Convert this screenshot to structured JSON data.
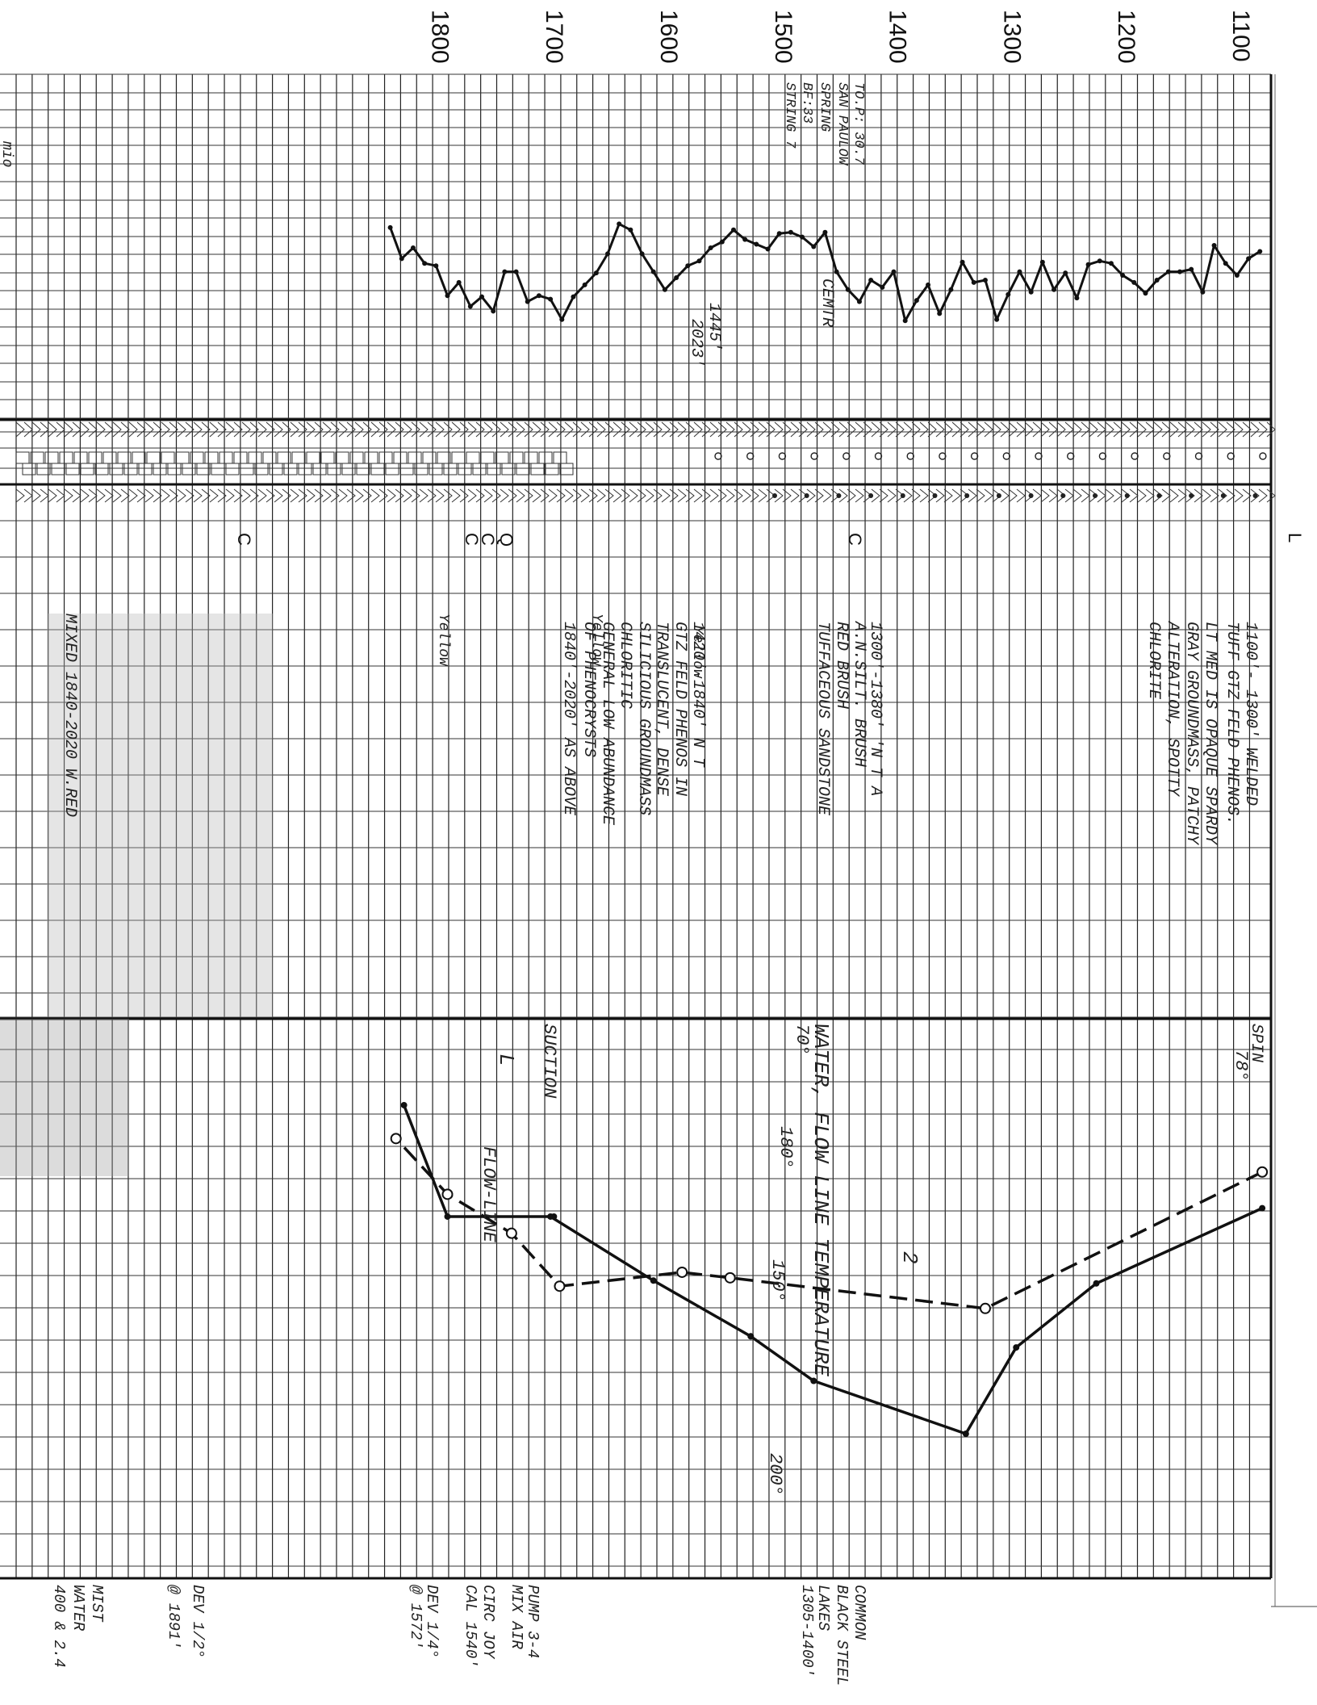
{
  "log": {
    "depth_labels": [
      "1100",
      "1200",
      "1300",
      "1400",
      "1500",
      "1600",
      "1700",
      "1800"
    ],
    "margin_label": "mio",
    "header_notes": [
      "TO.P: 30.7",
      "SAN PAULOW",
      "SPRING",
      "BF:33",
      "STRING 7"
    ],
    "top_curve_notes": [
      "1445'",
      "2023'"
    ],
    "cement_note": "CEMTR",
    "symbol_letters": [
      "L",
      "C",
      "C",
      "Q",
      "C",
      "C"
    ],
    "lithology_notes": [
      "1100'- 1300' WELDED",
      "TUFF GTZ FELD PHENOS.",
      "LT MED IS OPAQUE SPARDY",
      "GRAY GROUNDMASS, PATCHY",
      "ALTERATION, SPOTTY",
      "CHLORITE",
      "1300'-1380' 'N T A",
      "A.N.SILT. BRUSH",
      "RED BRUSH",
      "TUFFACEOUS SANDSTONE",
      "1420'-1840' N T",
      "GTZ FELD PHENOS IN",
      "TRANSLUCENT, DENSE",
      "SILICIOUS GROUNDMASS",
      "CHLORITIC",
      "GENERAL LOW ABUNDANCE",
      "OF PHENOCRYSTS",
      "1840'-2020' AS ABOVE",
      "MIXED 1840-2020 W.RED",
      "Yellow",
      "Yellow",
      "Yellow"
    ],
    "right_top_note": "SPIN",
    "chart_title": "WATER, FLOW LINE TEMPERATURE",
    "temp_markers": [
      "78°",
      "70°",
      "180°",
      "150°",
      "200°"
    ],
    "section_note": "SUCTION",
    "flowline_note": "FLOW-LINE",
    "curve_marks": [
      "2",
      "L"
    ],
    "footer_notes": [
      "COMMON",
      "BLACK STEEL",
      "LAKES",
      "1305-1400'",
      "PUMP 3-4",
      "MIX AIR",
      "CIRC JOY",
      "CAL 1540'",
      "DEV 1/4°",
      "@ 1572'",
      "DEV 1/2°",
      "@ 1891'",
      "MIST",
      "WATER",
      "400 & 2.4"
    ]
  },
  "chart_data": [
    {
      "type": "line",
      "title": "",
      "xlabel": "",
      "ylabel": "",
      "x": [
        1085,
        1095,
        1105,
        1115,
        1125,
        1135,
        1145,
        1155,
        1165,
        1175,
        1185,
        1195,
        1205,
        1215,
        1225,
        1235,
        1245,
        1255,
        1265,
        1275,
        1285,
        1295,
        1305,
        1315,
        1325,
        1335,
        1345,
        1355,
        1365,
        1375,
        1385,
        1395,
        1405,
        1415,
        1425,
        1435,
        1445,
        1455,
        1465,
        1475,
        1485,
        1495,
        1505,
        1515,
        1525,
        1535,
        1545,
        1555,
        1565,
        1575,
        1585,
        1595,
        1605,
        1615,
        1625,
        1635,
        1645,
        1655,
        1665,
        1675,
        1685,
        1695,
        1705,
        1715,
        1725,
        1735,
        1745,
        1755,
        1765,
        1775,
        1785,
        1795,
        1805,
        1815,
        1825,
        1835,
        1845
      ],
      "series": [
        {
          "values": [
            0.72,
            0.66,
            0.52,
            0.62,
            0.77,
            0.38,
            0.57,
            0.55,
            0.55,
            0.48,
            0.37,
            0.46,
            0.52,
            0.62,
            0.64,
            0.61,
            0.33,
            0.54,
            0.4,
            0.63,
            0.38,
            0.55,
            0.36,
            0.15,
            0.48,
            0.46,
            0.63,
            0.4,
            0.2,
            0.44,
            0.31,
            0.14,
            0.55,
            0.42,
            0.48,
            0.3,
            0.4,
            0.55,
            0.88,
            0.76,
            0.84,
            0.88,
            0.87,
            0.74,
            0.78,
            0.82,
            0.9,
            0.8,
            0.75,
            0.64,
            0.6,
            0.5,
            0.4,
            0.55,
            0.7,
            0.9,
            0.95,
            0.7,
            0.54,
            0.44,
            0.34,
            0.15,
            0.32,
            0.35,
            0.3,
            0.55,
            0.55,
            0.22,
            0.34,
            0.26,
            0.46,
            0.35,
            0.6,
            0.62,
            0.75,
            0.66,
            0.92
          ]
        }
      ]
    },
    {
      "type": "line",
      "title": "WATER, FLOW LINE TEMPERATURE",
      "xlabel": "",
      "ylabel": "",
      "series": [
        {
          "style": "solid",
          "x": [
            1083,
            1228,
            1298,
            1342,
            1475,
            1530,
            1615,
            1705,
            1702,
            1795,
            1833
          ],
          "values": [
            68,
            95,
            118,
            149,
            130,
            114,
            94,
            71,
            71,
            71,
            31
          ]
        },
        {
          "style": "dashed",
          "x": [
            1083,
            1325,
            1548,
            1590,
            1697,
            1739,
            1795,
            1840
          ],
          "values": [
            55,
            104,
            93,
            91,
            96,
            77,
            63,
            43
          ]
        }
      ]
    }
  ]
}
